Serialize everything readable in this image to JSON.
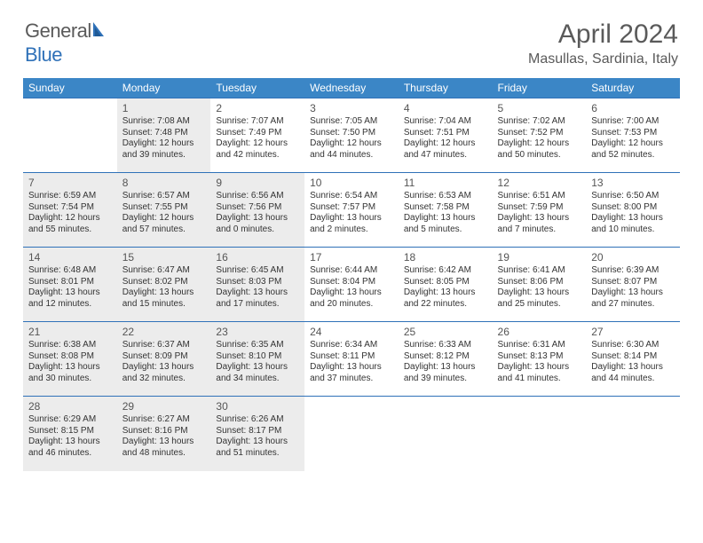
{
  "brand": {
    "part1": "General",
    "part2": "Blue"
  },
  "title": "April 2024",
  "location": "Masullas, Sardinia, Italy",
  "colors": {
    "header_bg": "#3b86c6",
    "border": "#2f71b8",
    "shaded": "#ececec",
    "text": "#333333",
    "title_text": "#5a5a5a"
  },
  "fonts": {
    "title_size": 30,
    "location_size": 16,
    "dow_size": 12,
    "daynum_size": 12,
    "info_size": 10
  },
  "dow": [
    "Sunday",
    "Monday",
    "Tuesday",
    "Wednesday",
    "Thursday",
    "Friday",
    "Saturday"
  ],
  "weeks": [
    [
      {
        "empty": true
      },
      {
        "n": "1",
        "shaded": true,
        "sunrise": "7:08 AM",
        "sunset": "7:48 PM",
        "daylight": "12 hours and 39 minutes."
      },
      {
        "n": "2",
        "shaded": false,
        "sunrise": "7:07 AM",
        "sunset": "7:49 PM",
        "daylight": "12 hours and 42 minutes."
      },
      {
        "n": "3",
        "shaded": false,
        "sunrise": "7:05 AM",
        "sunset": "7:50 PM",
        "daylight": "12 hours and 44 minutes."
      },
      {
        "n": "4",
        "shaded": false,
        "sunrise": "7:04 AM",
        "sunset": "7:51 PM",
        "daylight": "12 hours and 47 minutes."
      },
      {
        "n": "5",
        "shaded": false,
        "sunrise": "7:02 AM",
        "sunset": "7:52 PM",
        "daylight": "12 hours and 50 minutes."
      },
      {
        "n": "6",
        "shaded": false,
        "sunrise": "7:00 AM",
        "sunset": "7:53 PM",
        "daylight": "12 hours and 52 minutes."
      }
    ],
    [
      {
        "n": "7",
        "shaded": true,
        "sunrise": "6:59 AM",
        "sunset": "7:54 PM",
        "daylight": "12 hours and 55 minutes."
      },
      {
        "n": "8",
        "shaded": true,
        "sunrise": "6:57 AM",
        "sunset": "7:55 PM",
        "daylight": "12 hours and 57 minutes."
      },
      {
        "n": "9",
        "shaded": true,
        "sunrise": "6:56 AM",
        "sunset": "7:56 PM",
        "daylight": "13 hours and 0 minutes."
      },
      {
        "n": "10",
        "shaded": false,
        "sunrise": "6:54 AM",
        "sunset": "7:57 PM",
        "daylight": "13 hours and 2 minutes."
      },
      {
        "n": "11",
        "shaded": false,
        "sunrise": "6:53 AM",
        "sunset": "7:58 PM",
        "daylight": "13 hours and 5 minutes."
      },
      {
        "n": "12",
        "shaded": false,
        "sunrise": "6:51 AM",
        "sunset": "7:59 PM",
        "daylight": "13 hours and 7 minutes."
      },
      {
        "n": "13",
        "shaded": false,
        "sunrise": "6:50 AM",
        "sunset": "8:00 PM",
        "daylight": "13 hours and 10 minutes."
      }
    ],
    [
      {
        "n": "14",
        "shaded": true,
        "sunrise": "6:48 AM",
        "sunset": "8:01 PM",
        "daylight": "13 hours and 12 minutes."
      },
      {
        "n": "15",
        "shaded": true,
        "sunrise": "6:47 AM",
        "sunset": "8:02 PM",
        "daylight": "13 hours and 15 minutes."
      },
      {
        "n": "16",
        "shaded": true,
        "sunrise": "6:45 AM",
        "sunset": "8:03 PM",
        "daylight": "13 hours and 17 minutes."
      },
      {
        "n": "17",
        "shaded": false,
        "sunrise": "6:44 AM",
        "sunset": "8:04 PM",
        "daylight": "13 hours and 20 minutes."
      },
      {
        "n": "18",
        "shaded": false,
        "sunrise": "6:42 AM",
        "sunset": "8:05 PM",
        "daylight": "13 hours and 22 minutes."
      },
      {
        "n": "19",
        "shaded": false,
        "sunrise": "6:41 AM",
        "sunset": "8:06 PM",
        "daylight": "13 hours and 25 minutes."
      },
      {
        "n": "20",
        "shaded": false,
        "sunrise": "6:39 AM",
        "sunset": "8:07 PM",
        "daylight": "13 hours and 27 minutes."
      }
    ],
    [
      {
        "n": "21",
        "shaded": true,
        "sunrise": "6:38 AM",
        "sunset": "8:08 PM",
        "daylight": "13 hours and 30 minutes."
      },
      {
        "n": "22",
        "shaded": true,
        "sunrise": "6:37 AM",
        "sunset": "8:09 PM",
        "daylight": "13 hours and 32 minutes."
      },
      {
        "n": "23",
        "shaded": true,
        "sunrise": "6:35 AM",
        "sunset": "8:10 PM",
        "daylight": "13 hours and 34 minutes."
      },
      {
        "n": "24",
        "shaded": false,
        "sunrise": "6:34 AM",
        "sunset": "8:11 PM",
        "daylight": "13 hours and 37 minutes."
      },
      {
        "n": "25",
        "shaded": false,
        "sunrise": "6:33 AM",
        "sunset": "8:12 PM",
        "daylight": "13 hours and 39 minutes."
      },
      {
        "n": "26",
        "shaded": false,
        "sunrise": "6:31 AM",
        "sunset": "8:13 PM",
        "daylight": "13 hours and 41 minutes."
      },
      {
        "n": "27",
        "shaded": false,
        "sunrise": "6:30 AM",
        "sunset": "8:14 PM",
        "daylight": "13 hours and 44 minutes."
      }
    ],
    [
      {
        "n": "28",
        "shaded": true,
        "sunrise": "6:29 AM",
        "sunset": "8:15 PM",
        "daylight": "13 hours and 46 minutes."
      },
      {
        "n": "29",
        "shaded": true,
        "sunrise": "6:27 AM",
        "sunset": "8:16 PM",
        "daylight": "13 hours and 48 minutes."
      },
      {
        "n": "30",
        "shaded": true,
        "sunrise": "6:26 AM",
        "sunset": "8:17 PM",
        "daylight": "13 hours and 51 minutes."
      },
      {
        "empty": true
      },
      {
        "empty": true
      },
      {
        "empty": true
      },
      {
        "empty": true
      }
    ]
  ],
  "labels": {
    "sunrise": "Sunrise:",
    "sunset": "Sunset:",
    "daylight": "Daylight:"
  }
}
